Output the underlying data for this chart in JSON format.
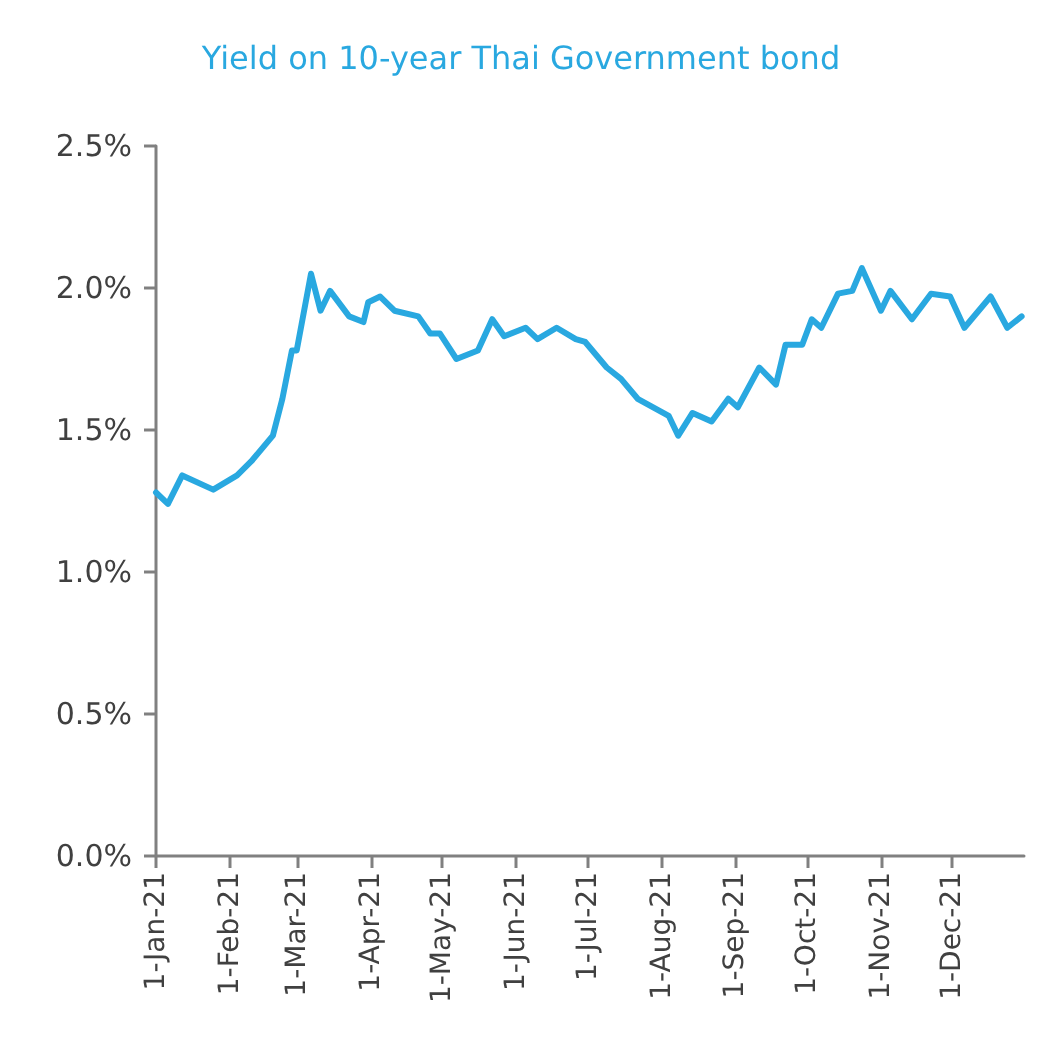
{
  "chart_data": {
    "type": "line",
    "title": "Yield on 10-year Thai Government bond",
    "x": [
      "2021-01-01",
      "2021-01-06",
      "2021-01-12",
      "2021-01-25",
      "2021-02-04",
      "2021-02-10",
      "2021-02-19",
      "2021-02-23",
      "2021-02-27",
      "2021-03-01",
      "2021-03-07",
      "2021-03-11",
      "2021-03-15",
      "2021-03-23",
      "2021-03-29",
      "2021-03-31",
      "2021-04-05",
      "2021-04-11",
      "2021-04-21",
      "2021-04-26",
      "2021-04-30",
      "2021-05-07",
      "2021-05-16",
      "2021-05-22",
      "2021-05-27",
      "2021-06-05",
      "2021-06-10",
      "2021-06-18",
      "2021-06-26",
      "2021-06-30",
      "2021-07-09",
      "2021-07-15",
      "2021-07-22",
      "2021-08-04",
      "2021-08-08",
      "2021-08-14",
      "2021-08-22",
      "2021-08-29",
      "2021-09-02",
      "2021-09-11",
      "2021-09-18",
      "2021-09-22",
      "2021-09-29",
      "2021-10-03",
      "2021-10-07",
      "2021-10-14",
      "2021-10-20",
      "2021-10-24",
      "2021-11-01",
      "2021-11-05",
      "2021-11-14",
      "2021-11-22",
      "2021-11-30",
      "2021-12-06",
      "2021-12-17",
      "2021-12-24",
      "2021-12-30"
    ],
    "series": [
      {
        "color": "#29a8e0",
        "values": [
          1.28,
          1.24,
          1.34,
          1.29,
          1.34,
          1.39,
          1.48,
          1.61,
          1.78,
          1.78,
          2.05,
          1.92,
          1.99,
          1.9,
          1.88,
          1.95,
          1.97,
          1.92,
          1.9,
          1.84,
          1.84,
          1.75,
          1.78,
          1.89,
          1.83,
          1.86,
          1.82,
          1.86,
          1.82,
          1.81,
          1.72,
          1.68,
          1.61,
          1.55,
          1.48,
          1.56,
          1.53,
          1.61,
          1.58,
          1.72,
          1.66,
          1.8,
          1.8,
          1.89,
          1.86,
          1.98,
          1.99,
          2.07,
          1.92,
          1.99,
          1.89,
          1.98,
          1.97,
          1.86,
          1.97,
          1.86,
          1.9
        ]
      }
    ],
    "xlim": [
      "2021-01-01",
      "2021-12-31"
    ],
    "xticks": [
      {
        "value": "2021-01-01",
        "label": "1-Jan-21"
      },
      {
        "value": "2021-02-01",
        "label": "1-Feb-21"
      },
      {
        "value": "2021-03-01",
        "label": "1-Mar-21"
      },
      {
        "value": "2021-04-01",
        "label": "1-Apr-21"
      },
      {
        "value": "2021-05-01",
        "label": "1-May-21"
      },
      {
        "value": "2021-06-01",
        "label": "1-Jun-21"
      },
      {
        "value": "2021-07-01",
        "label": "1-Jul-21"
      },
      {
        "value": "2021-08-01",
        "label": "1-Aug-21"
      },
      {
        "value": "2021-09-01",
        "label": "1-Sep-21"
      },
      {
        "value": "2021-10-01",
        "label": "1-Oct-21"
      },
      {
        "value": "2021-11-01",
        "label": "1-Nov-21"
      },
      {
        "value": "2021-12-01",
        "label": "1-Dec-21"
      }
    ],
    "ylim": [
      0,
      2.5
    ],
    "yticks": [
      {
        "value": 0,
        "label": "0.0%"
      },
      {
        "value": 0.5,
        "label": "0.5%"
      },
      {
        "value": 1,
        "label": "1.0%"
      },
      {
        "value": 1.5,
        "label": "1.5%"
      },
      {
        "value": 2,
        "label": "2.0%"
      },
      {
        "value": 2.5,
        "label": "2.5%"
      }
    ],
    "grid": false,
    "marker": "none",
    "line_style": "solid"
  }
}
